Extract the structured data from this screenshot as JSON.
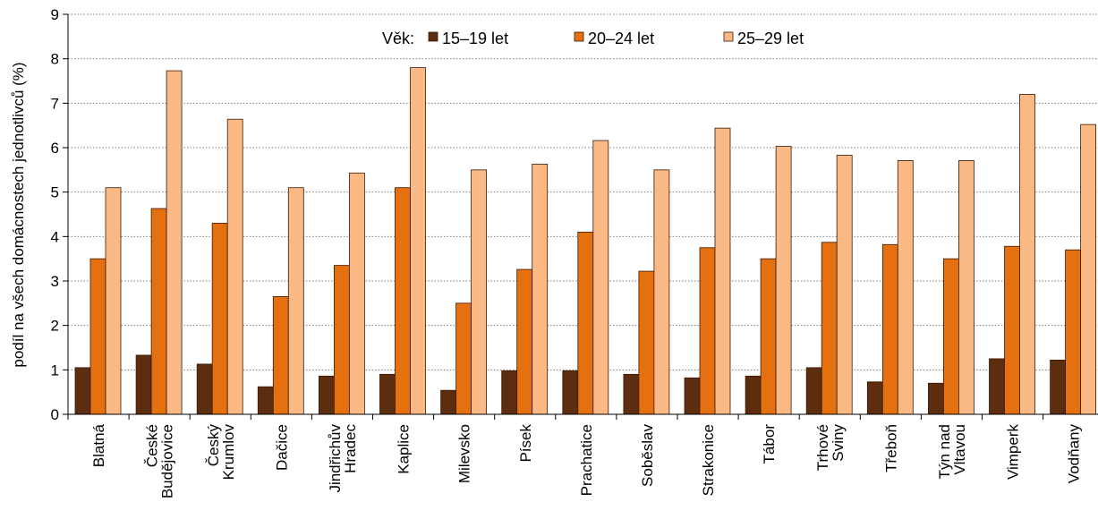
{
  "chart_data": {
    "type": "bar",
    "title": "",
    "xlabel": "",
    "ylabel": "podíl na všech domácnostech jednotlivců (%)",
    "ylim": [
      0,
      9
    ],
    "yticks": [
      0,
      1,
      2,
      3,
      4,
      5,
      6,
      7,
      8,
      9
    ],
    "grid": "horizontal dotted",
    "legend": {
      "title": "Věk:",
      "placement": "top-center"
    },
    "categories": [
      [
        "Blatná"
      ],
      [
        "České",
        "Budějovice"
      ],
      [
        "Český",
        "Krumlov"
      ],
      [
        "Dačice"
      ],
      [
        "Jindřichův",
        "Hradec"
      ],
      [
        "Kaplice"
      ],
      [
        "Milevsko"
      ],
      [
        "Písek"
      ],
      [
        "Prachatice"
      ],
      [
        "Soběslav"
      ],
      [
        "Strakonice"
      ],
      [
        "Tábor"
      ],
      [
        "Trhové",
        "Sviny"
      ],
      [
        "Třeboň"
      ],
      [
        "Týn nad",
        "Vltavou"
      ],
      [
        "Vimperk"
      ],
      [
        "Vodňany"
      ]
    ],
    "series": [
      {
        "name": "15–19 let",
        "color": "#5c2d0f",
        "values": [
          1.05,
          1.33,
          1.13,
          0.62,
          0.86,
          0.9,
          0.54,
          0.98,
          0.98,
          0.9,
          0.82,
          0.86,
          1.05,
          0.73,
          0.7,
          1.25,
          1.22
        ]
      },
      {
        "name": "20–24 let",
        "color": "#e5700f",
        "values": [
          3.5,
          4.63,
          4.3,
          2.65,
          3.35,
          5.1,
          2.5,
          3.26,
          4.1,
          3.22,
          3.75,
          3.5,
          3.87,
          3.82,
          3.5,
          3.78,
          3.7
        ]
      },
      {
        "name": "25–29 let",
        "color": "#fab985",
        "values": [
          5.1,
          7.73,
          6.64,
          5.1,
          5.43,
          7.8,
          5.5,
          5.63,
          6.16,
          5.5,
          6.44,
          6.03,
          5.83,
          5.71,
          5.71,
          7.2,
          6.52
        ]
      }
    ]
  }
}
